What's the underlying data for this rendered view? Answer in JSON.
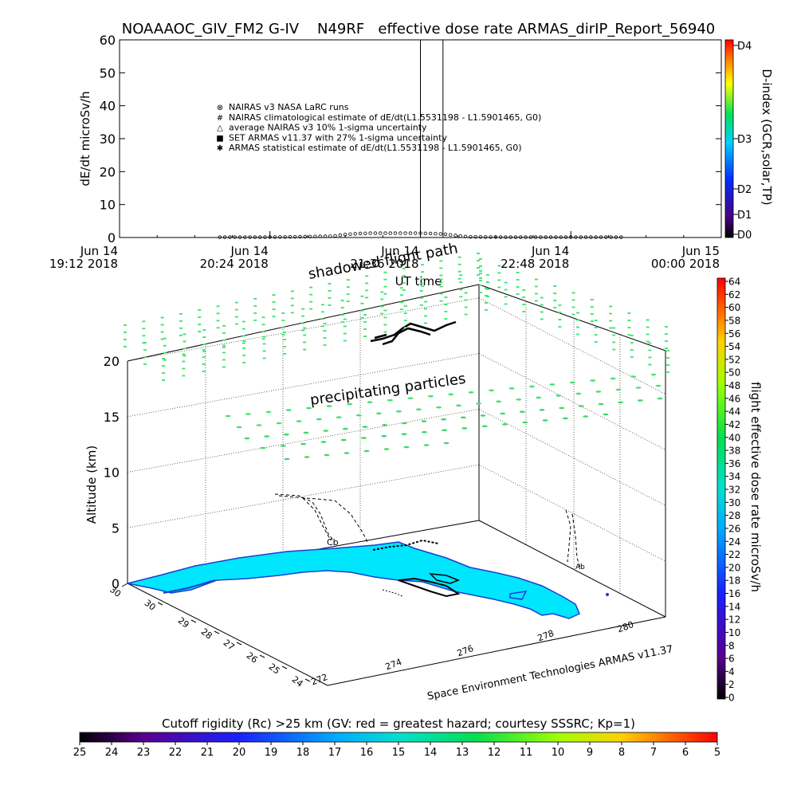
{
  "title": "NOAAAOC_GIV_FM2 G-IV    N49RF   effective dose rate ARMAS_dirIP_Report_56940",
  "chart_data": [
    {
      "type": "line",
      "ylabel": "dE/dt microSv/h",
      "xlabel": "UT time",
      "ylim": [
        0,
        60
      ],
      "y_ticks": [
        "0",
        "10",
        "20",
        "30",
        "40",
        "50",
        "60"
      ],
      "x_ticks": [
        {
          "l1": "Jun 14",
          "l2": "19:12 2018"
        },
        {
          "l1": "Jun 14",
          "l2": "20:24 2018"
        },
        {
          "l1": "Jun 14",
          "l2": "21:36 2018"
        },
        {
          "l1": "Jun 14",
          "l2": "22:48 2018"
        },
        {
          "l1": "Jun 15",
          "l2": "00:00 2018"
        }
      ],
      "legend": [
        {
          "symbol": "⊗",
          "label": "NAIRAS v3 NASA LaRC runs"
        },
        {
          "symbol": "#",
          "label": "NAIRAS climatological estimate of dE/dt(L1.5531198 - L1.5901465, G0)"
        },
        {
          "symbol": "△",
          "label": "average NAIRAS v3 10% 1-sigma uncertainty"
        },
        {
          "symbol": "■",
          "label": "SET ARMAS v11.37 with 27% 1-sigma uncertainty"
        },
        {
          "symbol": "✱",
          "label": "ARMAS statistical estimate of dE/dt(L1.5531198 - L1.5901465, G0)"
        }
      ],
      "series": [
        {
          "name": "NAIRAS v3 NASA LaRC runs",
          "t_hours": [
            20.0,
            20.3,
            20.6,
            20.9,
            21.0,
            21.1,
            21.2,
            21.3,
            21.4,
            21.5,
            21.6,
            21.7,
            21.8,
            21.9,
            22.0,
            22.3,
            22.6,
            22.9,
            23.2
          ],
          "values": [
            0.1,
            0.1,
            0.2,
            0.4,
            0.9,
            1.2,
            1.3,
            1.3,
            1.3,
            1.3,
            1.3,
            1.2,
            1.0,
            0.5,
            0.2,
            0.1,
            0.1,
            0.1,
            0.1
          ]
        }
      ],
      "vertical_markers_hours": [
        21.6,
        21.78
      ],
      "right_axis": {
        "label": "D-index (GCR,solar,TP)",
        "ticks": [
          "D0",
          "D1",
          "D2",
          "D3",
          "D4"
        ]
      }
    },
    {
      "type": "scatter",
      "zlabel": "Altitude (km)",
      "z_ticks": [
        "0",
        "5",
        "10",
        "15",
        "20"
      ],
      "lat_ticks": [
        "24",
        "25",
        "26",
        "27",
        "28",
        "29",
        "30"
      ],
      "lon_ticks": [
        "272",
        "274",
        "276",
        "278",
        "280"
      ],
      "annotations": [
        "shadowed flight path",
        "precipitating particles"
      ],
      "credit": "Space Environment Technologies ARMAS v11.37",
      "colorbar": {
        "label": "flight effective dose rate microSv/h",
        "ticks": [
          "0",
          "2",
          "4",
          "6",
          "8",
          "10",
          "12",
          "14",
          "16",
          "18",
          "20",
          "22",
          "24",
          "26",
          "28",
          "30",
          "32",
          "34",
          "36",
          "38",
          "40",
          "42",
          "44",
          "46",
          "48",
          "50",
          "52",
          "54",
          "56",
          "58",
          "60",
          "62",
          "64"
        ]
      },
      "bottom_colorbar": {
        "label": "Cutoff rigidity (Rc) >25 km (GV: red = greatest hazard; courtesy SSSRC; Kp=1)",
        "ticks": [
          "25",
          "24",
          "23",
          "22",
          "21",
          "20",
          "19",
          "18",
          "17",
          "16",
          "15",
          "14",
          "13",
          "12",
          "11",
          "10",
          "9",
          "8",
          "7",
          "6",
          "5"
        ]
      }
    }
  ]
}
